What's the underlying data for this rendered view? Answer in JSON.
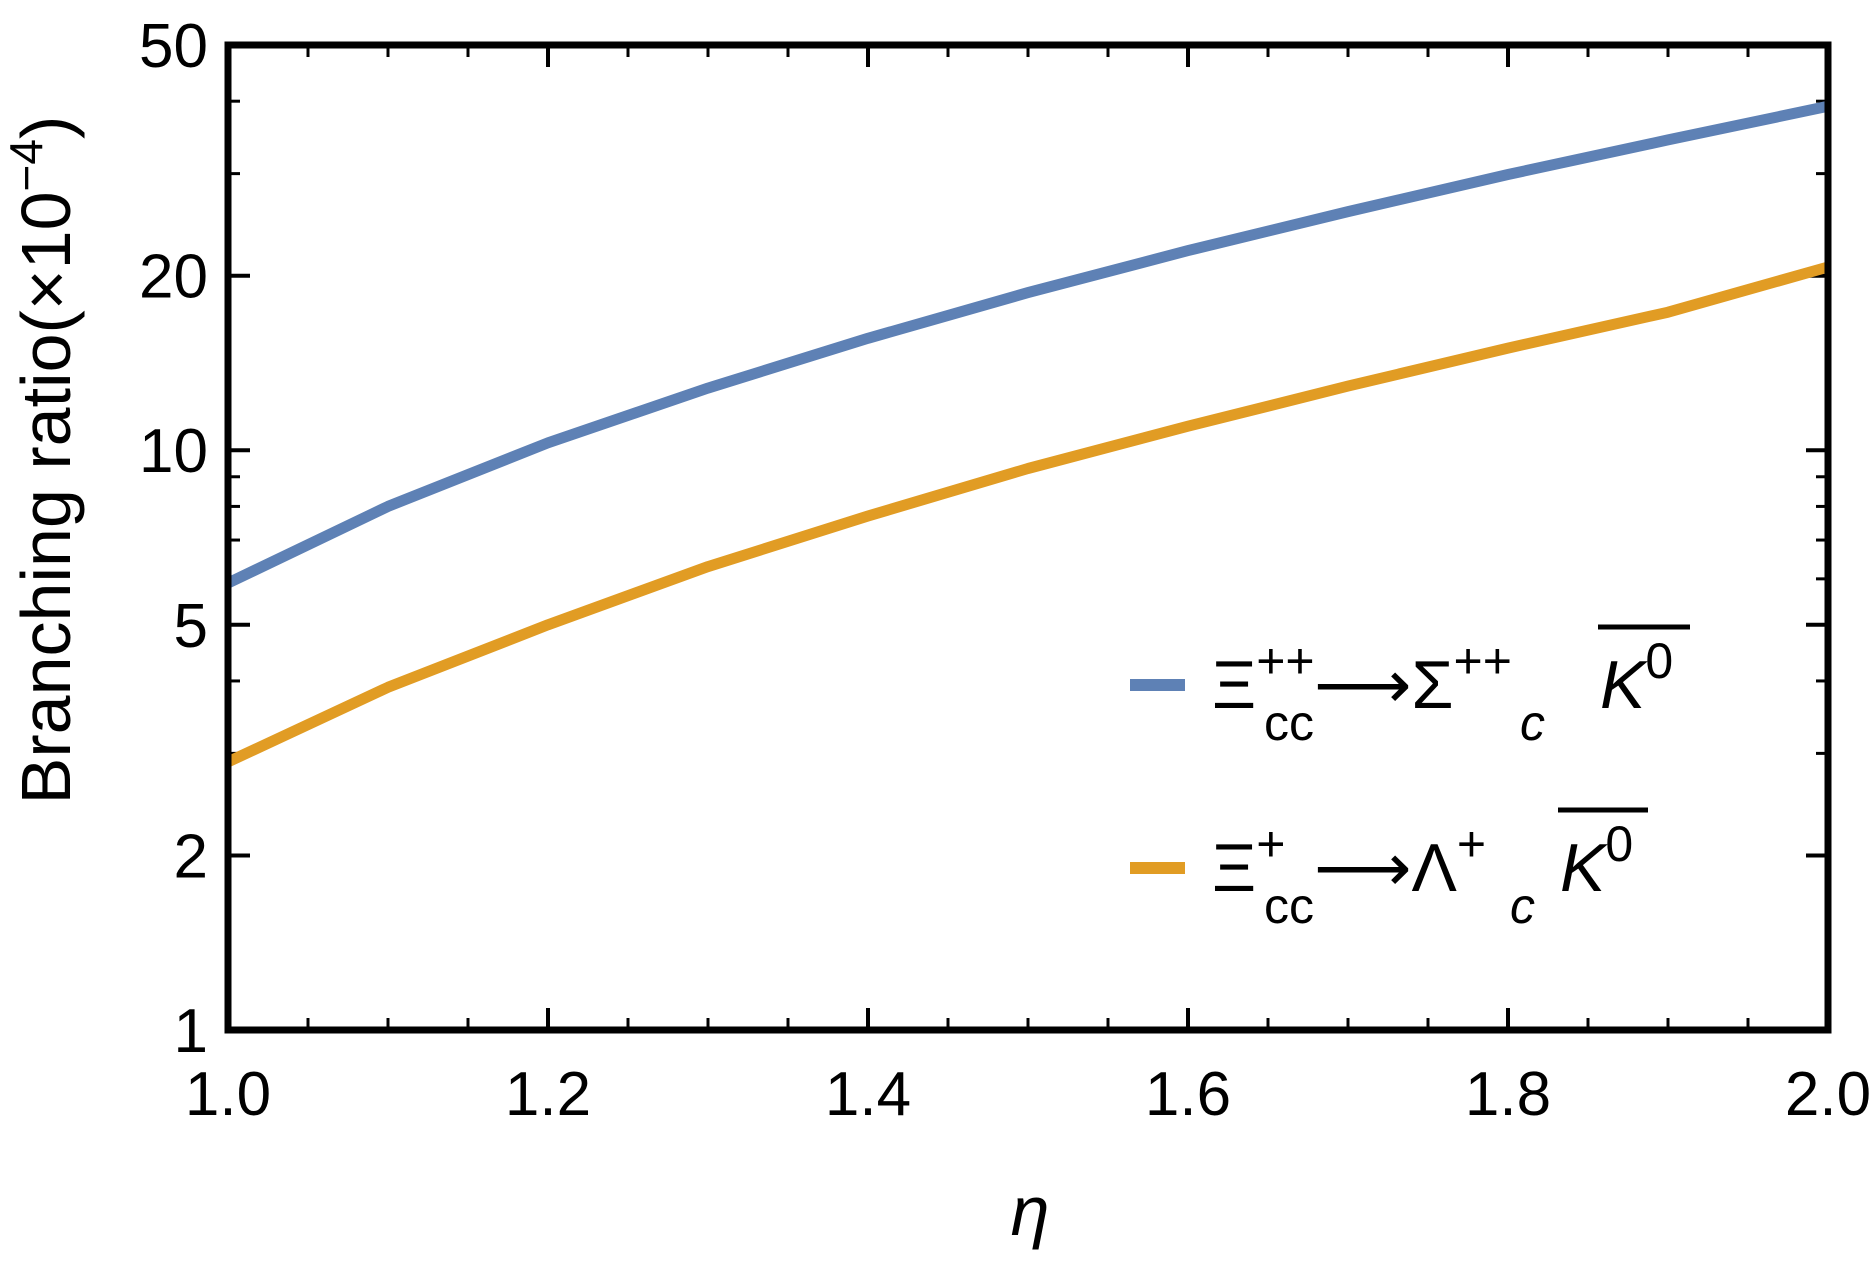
{
  "chart_data": {
    "type": "line",
    "title": "",
    "xlabel": "η",
    "ylabel": "Branching ratio(×10",
    "ylabel_exponent": "−4",
    "ylabel_close": ")",
    "xlim": [
      1.0,
      2.0
    ],
    "ylim": [
      1,
      50
    ],
    "y_scale": "log",
    "x_ticks": [
      1.0,
      1.2,
      1.4,
      1.6,
      1.8,
      2.0
    ],
    "x_tick_labels": [
      "1.0",
      "1.2",
      "1.4",
      "1.6",
      "1.8",
      "2.0"
    ],
    "y_ticks": [
      1,
      2,
      5,
      10,
      20,
      50
    ],
    "y_tick_labels": [
      "1",
      "2",
      "5",
      "10",
      "20",
      "50"
    ],
    "grid": false,
    "legend_position": "lower-right",
    "series": [
      {
        "name": "Ξcc++ ⟶ Σc++ K̄0",
        "legend_parts": {
          "parent": "Ξ",
          "parent_sub": "cc",
          "parent_sup": "++",
          "daughter": "Σ",
          "daughter_sub": "c",
          "daughter_sup": "++",
          "meson": "K",
          "meson_sup": "0"
        },
        "color": "#5e81b5",
        "x": [
          1.0,
          1.1,
          1.2,
          1.3,
          1.4,
          1.5,
          1.6,
          1.7,
          1.8,
          1.9,
          2.0
        ],
        "y": [
          5.9,
          8.0,
          10.3,
          12.8,
          15.6,
          18.7,
          22.1,
          25.8,
          29.9,
          34.3,
          39.2
        ]
      },
      {
        "name": "Ξcc+ ⟶ Λc+ K̄0",
        "legend_parts": {
          "parent": "Ξ",
          "parent_sub": "cc",
          "parent_sup": "+",
          "daughter": "Λ",
          "daughter_sub": "c",
          "daughter_sup": "+",
          "meson": "K",
          "meson_sup": "0"
        },
        "color": "#e19c24",
        "x": [
          1.0,
          1.1,
          1.2,
          1.3,
          1.4,
          1.5,
          1.6,
          1.7,
          1.8,
          1.9,
          2.0
        ],
        "y": [
          2.9,
          3.9,
          5.0,
          6.3,
          7.7,
          9.3,
          11.0,
          12.9,
          15.0,
          17.3,
          20.7
        ]
      }
    ]
  }
}
